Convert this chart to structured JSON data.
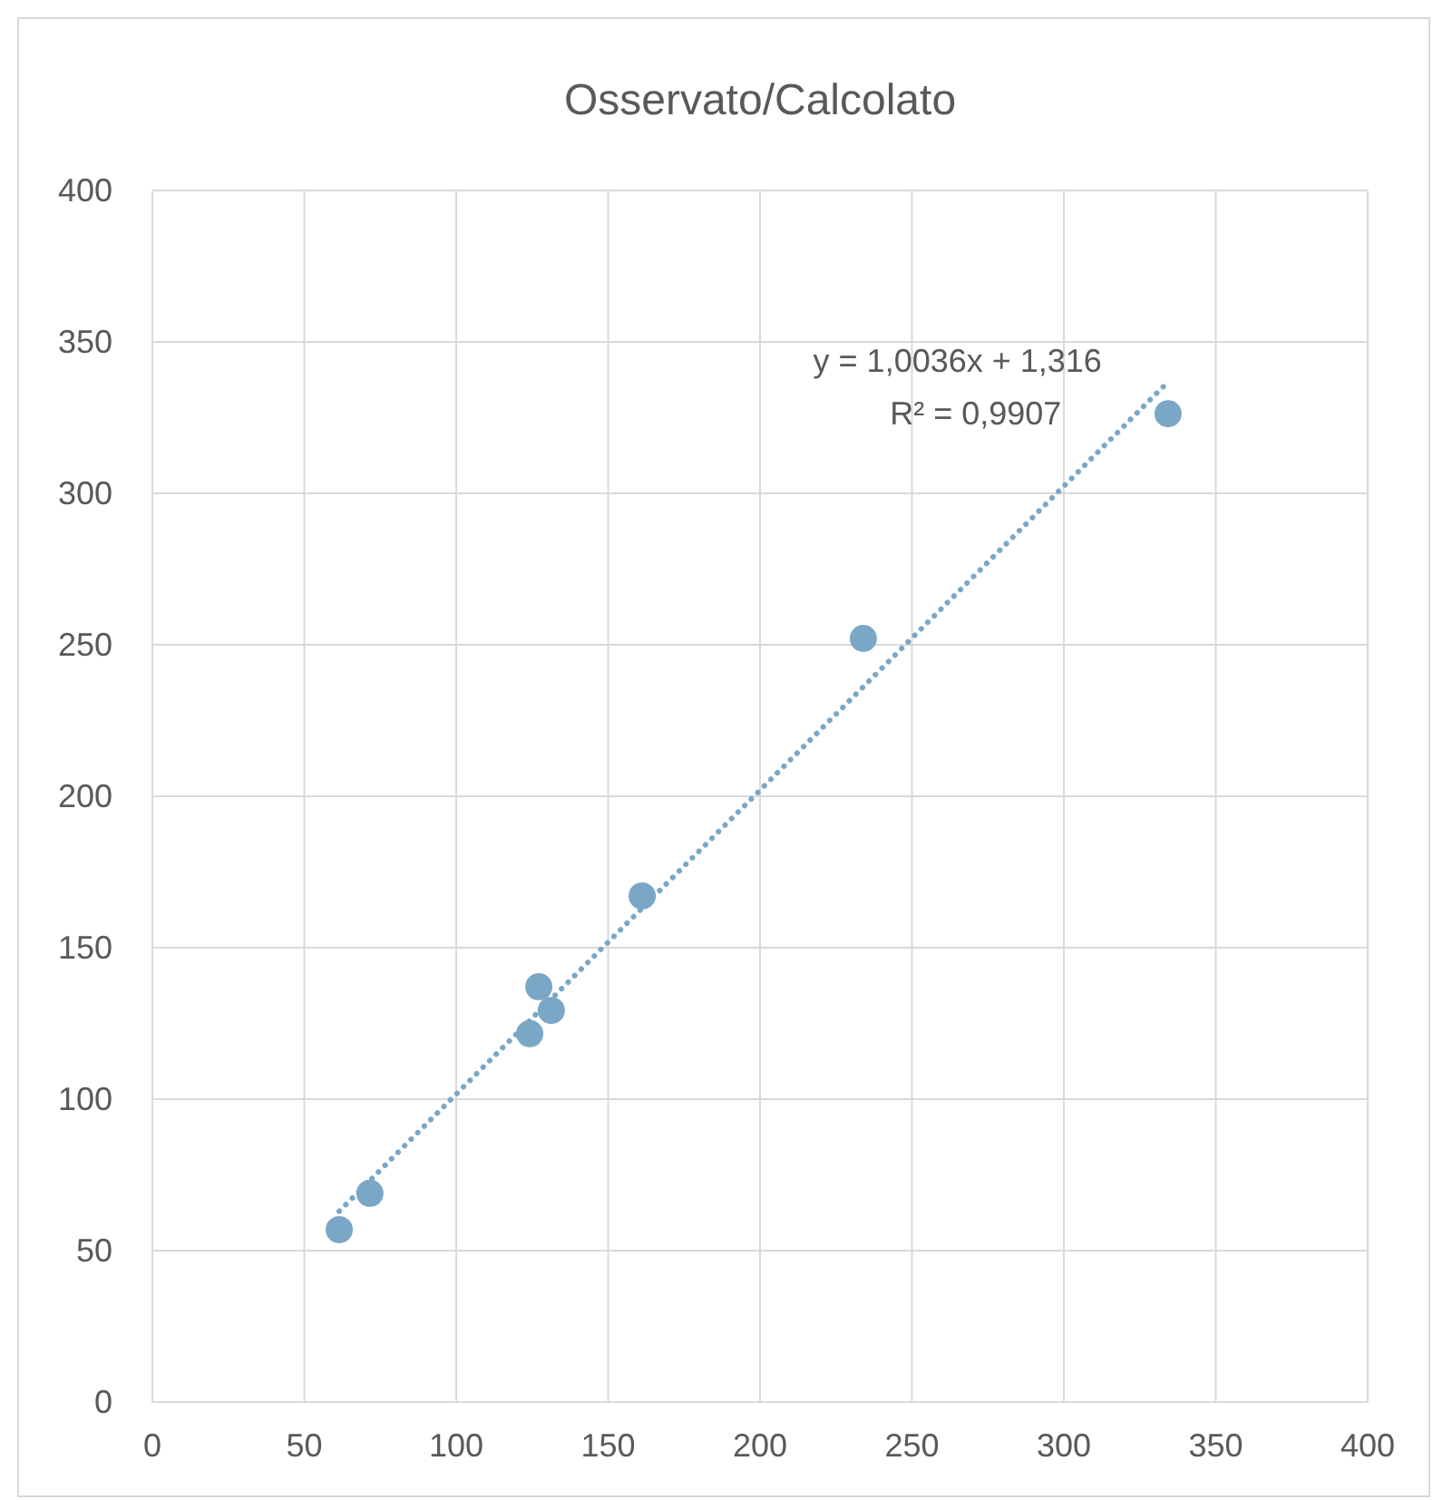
{
  "chart_data": {
    "type": "scatter",
    "title": "Osservato/Calcolato",
    "series": [
      {
        "color": "#7ba7c7",
        "marker": "circle",
        "x": [
          61.5,
          71.6,
          124.2,
          127.2,
          131.3,
          161.2,
          234.0,
          334.3
        ],
        "values": [
          56.9,
          68.9,
          121.6,
          137.1,
          129.3,
          167.1,
          252.1,
          326.3
        ]
      },
      {
        "type": "line",
        "color": "#7ba7c7",
        "line_style": "dotted",
        "marker": "none",
        "x": [
          61.5,
          334.3
        ],
        "values": [
          63.0,
          336.8
        ]
      }
    ],
    "xlim": [
      0,
      400
    ],
    "ylim": [
      0,
      400
    ],
    "xticks": [
      0,
      50,
      100,
      150,
      200,
      250,
      300,
      350,
      400
    ],
    "yticks": [
      0,
      50,
      100,
      150,
      200,
      250,
      300,
      350,
      400
    ],
    "grid": true,
    "annotations": [
      "y = 1,0036x + 1,316",
      "R² = 0,9907"
    ]
  }
}
